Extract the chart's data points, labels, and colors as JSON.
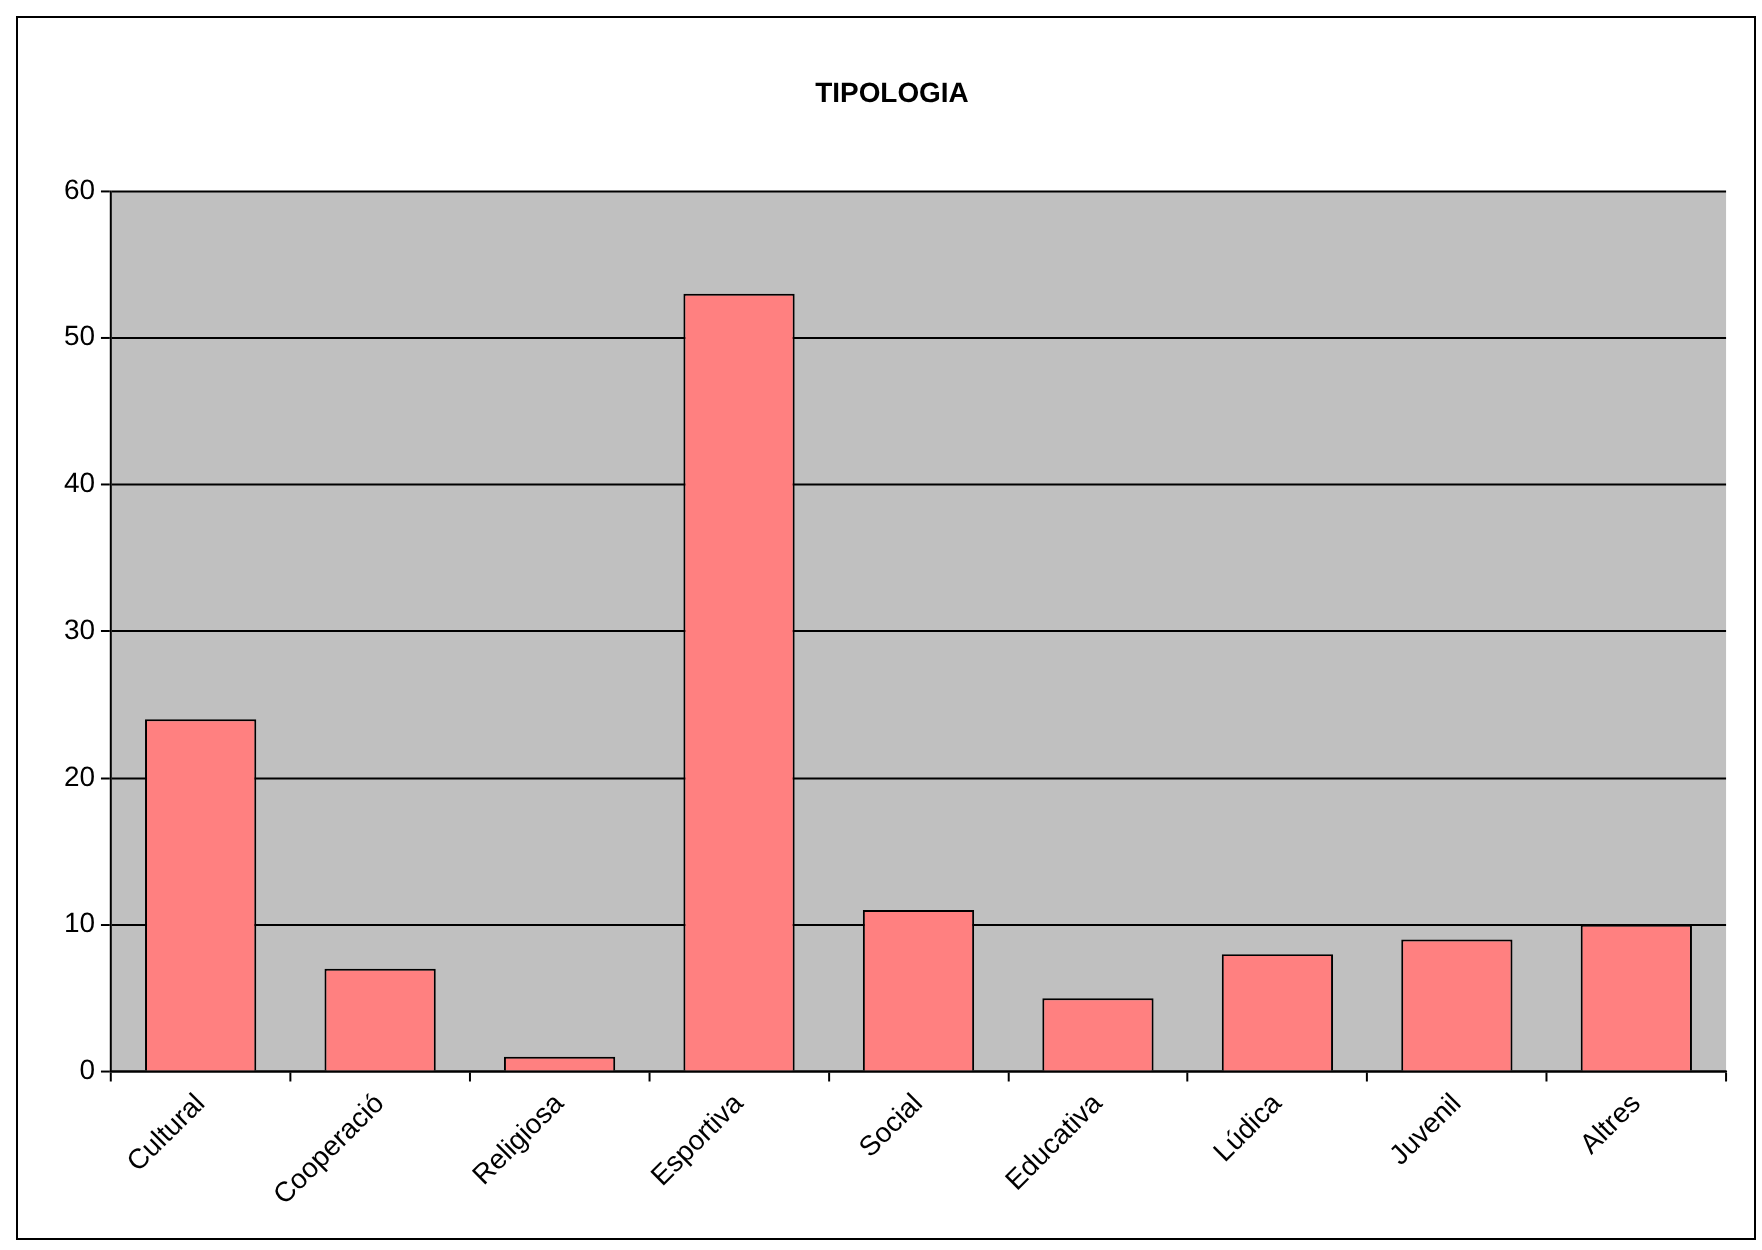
{
  "chart_data": {
    "type": "bar",
    "title": "TIPOLOGIA",
    "categories": [
      "Cultural",
      "Cooperació",
      "Religiosa",
      "Esportiva",
      "Social",
      "Educativa",
      "Lúdica",
      "Juvenil",
      "Altres"
    ],
    "values": [
      24,
      7,
      1,
      53,
      11,
      5,
      8,
      9,
      10
    ],
    "color": "#ff8080",
    "ylim": [
      0,
      60
    ],
    "yticks": [
      0,
      10,
      20,
      30,
      40,
      50,
      60
    ],
    "grid": "y",
    "legend": false
  }
}
